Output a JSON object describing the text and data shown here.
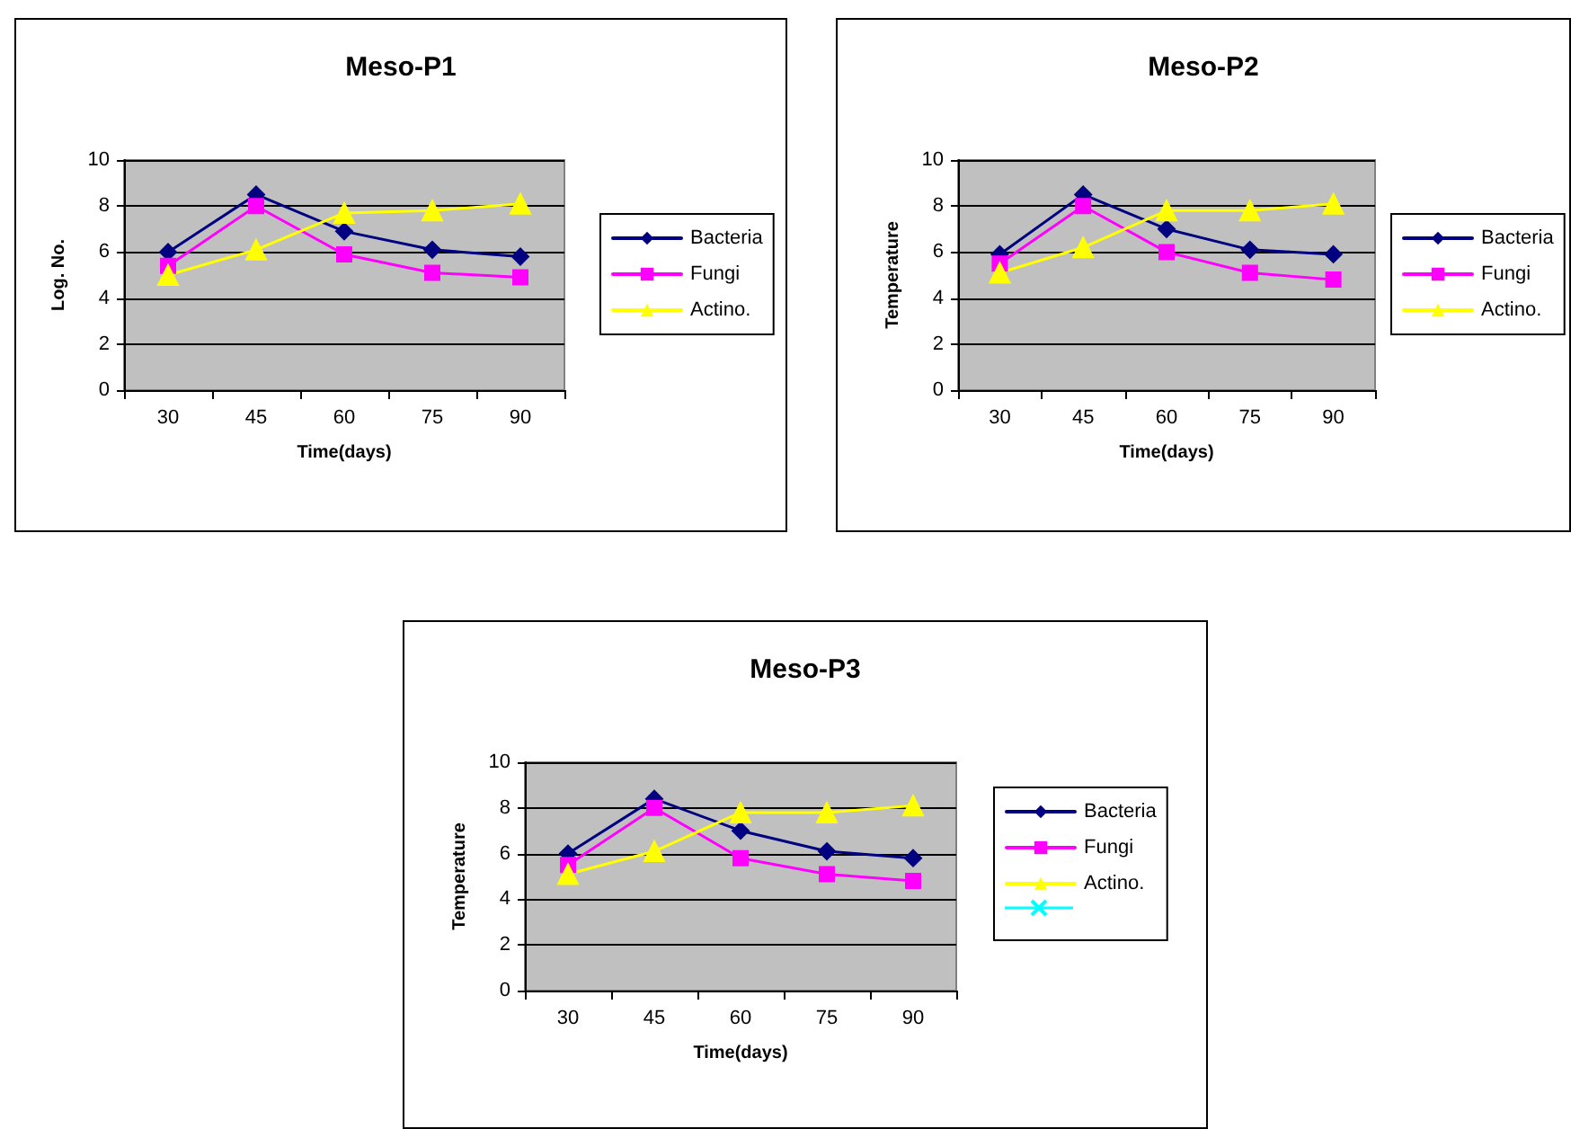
{
  "chart_data": [
    {
      "type": "line",
      "title": "Meso-P1",
      "xlabel": "Time(days)",
      "ylabel": "Log. No.",
      "categories": [
        "30",
        "45",
        "60",
        "75",
        "90"
      ],
      "ylim": [
        0,
        10
      ],
      "yticks": [
        0,
        2,
        4,
        6,
        8,
        10
      ],
      "grid": "y",
      "legend": "right",
      "series": [
        {
          "name": "Bacteria",
          "color": "#000080",
          "marker": "diamond",
          "values": [
            6.0,
            8.5,
            6.9,
            6.1,
            5.8
          ]
        },
        {
          "name": "Fungi",
          "color": "#ff00ff",
          "marker": "square",
          "values": [
            5.4,
            8.0,
            5.9,
            5.1,
            4.9
          ]
        },
        {
          "name": "Actino.",
          "color": "#ffff00",
          "marker": "triangle",
          "values": [
            5.0,
            6.1,
            7.7,
            7.8,
            8.1
          ]
        }
      ]
    },
    {
      "type": "line",
      "title": "Meso-P2",
      "xlabel": "Time(days)",
      "ylabel": "Temperature",
      "categories": [
        "30",
        "45",
        "60",
        "75",
        "90"
      ],
      "ylim": [
        0,
        10
      ],
      "yticks": [
        0,
        2,
        4,
        6,
        8,
        10
      ],
      "grid": "y",
      "legend": "right",
      "series": [
        {
          "name": "Bacteria",
          "color": "#000080",
          "marker": "diamond",
          "values": [
            5.9,
            8.5,
            7.0,
            6.1,
            5.9
          ]
        },
        {
          "name": "Fungi",
          "color": "#ff00ff",
          "marker": "square",
          "values": [
            5.5,
            8.0,
            6.0,
            5.1,
            4.8
          ]
        },
        {
          "name": "Actino.",
          "color": "#ffff00",
          "marker": "triangle",
          "values": [
            5.1,
            6.2,
            7.8,
            7.8,
            8.1
          ]
        }
      ]
    },
    {
      "type": "line",
      "title": "Meso-P3",
      "xlabel": "Time(days)",
      "ylabel": "Temperature",
      "categories": [
        "30",
        "45",
        "60",
        "75",
        "90"
      ],
      "ylim": [
        0,
        10
      ],
      "yticks": [
        0,
        2,
        4,
        6,
        8,
        10
      ],
      "grid": "y",
      "legend": "right",
      "series": [
        {
          "name": "Bacteria",
          "color": "#000080",
          "marker": "diamond",
          "values": [
            6.0,
            8.4,
            7.0,
            6.1,
            5.8
          ]
        },
        {
          "name": "Fungi",
          "color": "#ff00ff",
          "marker": "square",
          "values": [
            5.5,
            8.0,
            5.8,
            5.1,
            4.8
          ]
        },
        {
          "name": "Actino.",
          "color": "#ffff00",
          "marker": "triangle",
          "values": [
            5.1,
            6.1,
            7.8,
            7.8,
            8.1
          ]
        },
        {
          "color": "#00ffff",
          "marker": "cross",
          "values": [
            null,
            null,
            null,
            null,
            null
          ]
        }
      ]
    }
  ]
}
